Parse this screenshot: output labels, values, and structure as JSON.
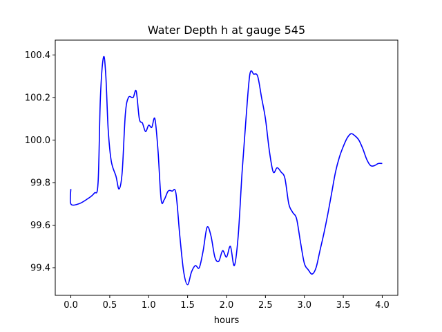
{
  "chart_data": {
    "type": "line",
    "title": "Water Depth h at gauge 545",
    "xlabel": "hours",
    "ylabel": "",
    "xlim": [
      -0.2,
      4.2
    ],
    "ylim": [
      99.27,
      100.47
    ],
    "xticks": [
      0.0,
      0.5,
      1.0,
      1.5,
      2.0,
      2.5,
      3.0,
      3.5,
      4.0
    ],
    "xtick_labels": [
      "0.0",
      "0.5",
      "1.0",
      "1.5",
      "2.0",
      "2.5",
      "3.0",
      "3.5",
      "4.0"
    ],
    "yticks": [
      99.4,
      99.6,
      99.8,
      100.0,
      100.2,
      100.4
    ],
    "ytick_labels": [
      "99.4",
      "99.6",
      "99.8",
      "100.0",
      "100.2",
      "100.4"
    ],
    "grid": false,
    "series": [
      {
        "color": "#0000ff",
        "x": [
          0.0,
          0.0,
          0.1,
          0.2,
          0.3,
          0.35,
          0.38,
          0.42,
          0.45,
          0.48,
          0.52,
          0.58,
          0.62,
          0.66,
          0.7,
          0.74,
          0.8,
          0.84,
          0.88,
          0.92,
          0.96,
          1.0,
          1.04,
          1.08,
          1.12,
          1.16,
          1.2,
          1.25,
          1.3,
          1.35,
          1.4,
          1.45,
          1.5,
          1.55,
          1.6,
          1.65,
          1.7,
          1.75,
          1.8,
          1.85,
          1.9,
          1.95,
          2.0,
          2.05,
          2.1,
          2.15,
          2.2,
          2.25,
          2.3,
          2.35,
          2.4,
          2.45,
          2.5,
          2.55,
          2.6,
          2.65,
          2.7,
          2.75,
          2.8,
          2.85,
          2.9,
          2.95,
          3.0,
          3.05,
          3.1,
          3.15,
          3.2,
          3.25,
          3.3,
          3.35,
          3.4,
          3.45,
          3.5,
          3.55,
          3.6,
          3.65,
          3.7,
          3.75,
          3.8,
          3.85,
          3.9,
          3.95,
          4.0
        ],
        "y": [
          99.77,
          99.7,
          99.7,
          99.72,
          99.75,
          99.8,
          100.2,
          100.39,
          100.3,
          100.05,
          99.9,
          99.83,
          99.77,
          99.85,
          100.12,
          100.2,
          100.2,
          100.23,
          100.1,
          100.08,
          100.04,
          100.07,
          100.06,
          100.1,
          99.95,
          99.72,
          99.72,
          99.76,
          99.76,
          99.75,
          99.55,
          99.38,
          99.32,
          99.38,
          99.41,
          99.4,
          99.48,
          99.59,
          99.55,
          99.45,
          99.43,
          99.48,
          99.45,
          99.5,
          99.41,
          99.55,
          99.85,
          100.1,
          100.31,
          100.31,
          100.3,
          100.2,
          100.1,
          99.95,
          99.85,
          99.87,
          99.85,
          99.82,
          99.7,
          99.66,
          99.63,
          99.52,
          99.42,
          99.39,
          99.37,
          99.4,
          99.48,
          99.56,
          99.65,
          99.75,
          99.85,
          99.92,
          99.97,
          100.01,
          100.03,
          100.02,
          100.0,
          99.96,
          99.91,
          99.88,
          99.88,
          99.89,
          99.89
        ]
      }
    ]
  }
}
